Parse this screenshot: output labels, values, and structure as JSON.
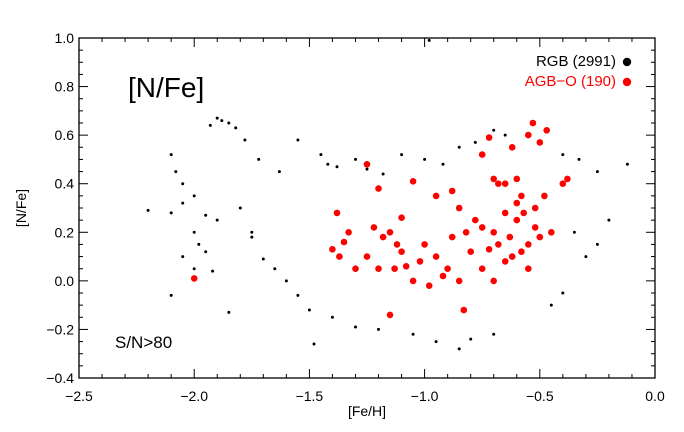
{
  "chart_data": {
    "type": "scatter",
    "xlabel": "[Fe/H]",
    "ylabel": "[N/Fe]",
    "xlim": [
      -2.5,
      0.0
    ],
    "ylim": [
      -0.4,
      1.0
    ],
    "xticks": [
      -2.5,
      -2.0,
      -1.5,
      -1.0,
      -0.5,
      0.0
    ],
    "xtick_labels": [
      "−2.5",
      "−2.0",
      "−1.5",
      "−1.0",
      "−0.5",
      "0.0"
    ],
    "yticks": [
      -0.4,
      -0.2,
      0.0,
      0.2,
      0.4,
      0.6,
      0.8,
      1.0
    ],
    "ytick_labels": [
      "−0.4",
      "−0.2",
      "0.0",
      "0.2",
      "0.4",
      "0.6",
      "0.8",
      "1.0"
    ],
    "annotations": {
      "panel_title": "[N/Fe]",
      "selection": "S/N>80"
    },
    "legend": {
      "placement": "top-right",
      "entries": [
        "RGB (2991)",
        "AGB−O (190)"
      ]
    },
    "series": [
      {
        "name": "RGB (2991)",
        "color": "#000000",
        "count": 2991,
        "points": [
          [
            -1.9,
            0.67
          ],
          [
            -1.88,
            0.66
          ],
          [
            -1.93,
            0.64
          ],
          [
            -1.85,
            0.65
          ],
          [
            -1.82,
            0.63
          ],
          [
            -2.1,
            0.52
          ],
          [
            -2.08,
            0.45
          ],
          [
            -2.05,
            0.4
          ],
          [
            -2.0,
            0.35
          ],
          [
            -2.2,
            0.29
          ],
          [
            -2.1,
            0.28
          ],
          [
            -2.05,
            0.32
          ],
          [
            -1.95,
            0.27
          ],
          [
            -1.9,
            0.25
          ],
          [
            -1.8,
            0.3
          ],
          [
            -1.75,
            0.2
          ],
          [
            -1.78,
            0.58
          ],
          [
            -1.72,
            0.5
          ],
          [
            -2.0,
            0.2
          ],
          [
            -1.98,
            0.15
          ],
          [
            -2.05,
            0.1
          ],
          [
            -1.95,
            0.12
          ],
          [
            -2.1,
            -0.06
          ],
          [
            -2.0,
            0.05
          ],
          [
            -1.92,
            0.04
          ],
          [
            -1.85,
            -0.13
          ],
          [
            -1.75,
            0.18
          ],
          [
            -1.7,
            0.09
          ],
          [
            -1.65,
            0.05
          ],
          [
            -1.6,
            0.0
          ],
          [
            -1.55,
            -0.06
          ],
          [
            -1.5,
            -0.12
          ],
          [
            -1.48,
            -0.26
          ],
          [
            -1.4,
            -0.15
          ],
          [
            -1.3,
            -0.19
          ],
          [
            -1.2,
            -0.2
          ],
          [
            -1.05,
            -0.22
          ],
          [
            -0.95,
            -0.25
          ],
          [
            -0.85,
            -0.28
          ],
          [
            -0.8,
            -0.24
          ],
          [
            -0.7,
            -0.22
          ],
          [
            -1.63,
            0.45
          ],
          [
            -1.55,
            0.58
          ],
          [
            -1.45,
            0.52
          ],
          [
            -1.42,
            0.48
          ],
          [
            -1.38,
            0.47
          ],
          [
            -1.3,
            0.5
          ],
          [
            -1.25,
            0.46
          ],
          [
            -1.18,
            0.44
          ],
          [
            -1.1,
            0.52
          ],
          [
            -1.0,
            0.5
          ],
          [
            -0.92,
            0.48
          ],
          [
            -0.85,
            0.55
          ],
          [
            -0.78,
            0.57
          ],
          [
            -0.7,
            0.62
          ],
          [
            -0.65,
            0.6
          ],
          [
            -0.98,
            0.99
          ],
          [
            -0.4,
            0.52
          ],
          [
            -0.33,
            0.5
          ],
          [
            -0.25,
            0.45
          ],
          [
            -0.12,
            0.48
          ],
          [
            -0.3,
            0.1
          ],
          [
            -0.25,
            0.15
          ],
          [
            -0.2,
            0.25
          ],
          [
            -0.35,
            0.2
          ],
          [
            -0.45,
            -0.1
          ],
          [
            -0.4,
            -0.05
          ]
        ]
      },
      {
        "name": "AGB−O (190)",
        "color": "#ff0000",
        "count": 190,
        "points": [
          [
            -2.0,
            0.01
          ],
          [
            -1.38,
            0.28
          ],
          [
            -1.33,
            0.2
          ],
          [
            -1.35,
            0.16
          ],
          [
            -1.4,
            0.13
          ],
          [
            -1.37,
            0.1
          ],
          [
            -1.25,
            0.48
          ],
          [
            -1.2,
            0.38
          ],
          [
            -1.1,
            0.26
          ],
          [
            -1.15,
            0.2
          ],
          [
            -1.13,
            0.05
          ],
          [
            -1.15,
            -0.14
          ],
          [
            -1.05,
            0.41
          ],
          [
            -0.95,
            0.35
          ],
          [
            -0.88,
            0.37
          ],
          [
            -0.85,
            0.3
          ],
          [
            -0.83,
            -0.12
          ],
          [
            -0.75,
            0.52
          ],
          [
            -0.72,
            0.59
          ],
          [
            -0.7,
            0.42
          ],
          [
            -0.68,
            0.4
          ],
          [
            -0.65,
            0.4
          ],
          [
            -0.6,
            0.42
          ],
          [
            -0.62,
            0.55
          ],
          [
            -0.55,
            0.6
          ],
          [
            -0.53,
            0.65
          ],
          [
            -0.5,
            0.57
          ],
          [
            -0.47,
            0.62
          ],
          [
            -0.48,
            0.35
          ],
          [
            -0.52,
            0.3
          ],
          [
            -0.5,
            0.18
          ],
          [
            -0.45,
            0.2
          ],
          [
            -0.55,
            0.15
          ],
          [
            -0.4,
            0.4
          ],
          [
            -0.38,
            0.42
          ],
          [
            -1.25,
            0.1
          ],
          [
            -1.2,
            0.05
          ],
          [
            -1.1,
            0.12
          ],
          [
            -1.0,
            0.15
          ],
          [
            -0.95,
            0.1
          ],
          [
            -0.9,
            0.05
          ],
          [
            -0.8,
            0.12
          ],
          [
            -0.78,
            0.25
          ],
          [
            -0.75,
            0.22
          ],
          [
            -0.7,
            0.2
          ],
          [
            -0.65,
            0.28
          ],
          [
            -0.6,
            0.25
          ],
          [
            -0.58,
            0.35
          ],
          [
            -1.05,
            0.0
          ],
          [
            -0.98,
            -0.02
          ],
          [
            -0.92,
            0.02
          ],
          [
            -0.85,
            0.0
          ],
          [
            -0.75,
            0.05
          ],
          [
            -0.7,
            0.0
          ],
          [
            -0.65,
            0.08
          ],
          [
            -0.62,
            0.1
          ],
          [
            -0.58,
            0.12
          ],
          [
            -0.55,
            0.05
          ],
          [
            -1.3,
            0.05
          ],
          [
            -1.22,
            0.22
          ],
          [
            -1.18,
            0.18
          ],
          [
            -1.12,
            0.15
          ],
          [
            -1.08,
            0.06
          ],
          [
            -1.02,
            0.08
          ],
          [
            -0.88,
            0.18
          ],
          [
            -0.82,
            0.2
          ],
          [
            -0.72,
            0.13
          ],
          [
            -0.68,
            0.15
          ],
          [
            -0.63,
            0.18
          ],
          [
            -0.6,
            0.32
          ],
          [
            -0.57,
            0.28
          ],
          [
            -0.52,
            0.22
          ]
        ]
      }
    ]
  }
}
